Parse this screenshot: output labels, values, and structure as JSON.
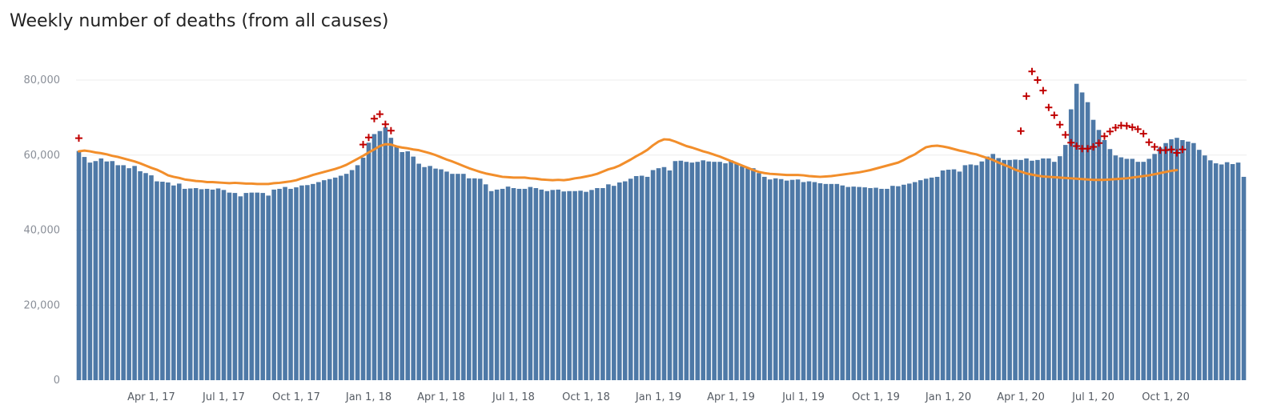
{
  "chart_data": {
    "type": "bar",
    "title": "Weekly number of deaths (from all causes)",
    "ylim": [
      0,
      80000
    ],
    "yticks": [
      0,
      20000,
      40000,
      60000,
      80000
    ],
    "ytick_labels": [
      "0",
      "20,000",
      "40,000",
      "60,000",
      "80,000"
    ],
    "xtick_labels": [
      "Apr 1, 17",
      "Jul 1, 17",
      "Oct 1, 17",
      "Jan 1, 18",
      "Apr 1, 18",
      "Jul 1, 18",
      "Oct 1, 18",
      "Jan 1, 19",
      "Apr 1, 19",
      "Jul 1, 19",
      "Oct 1, 19",
      "Jan 1, 20",
      "Apr 1, 20",
      "Jul 1, 20",
      "Oct 1, 20"
    ],
    "xtick_weeks": [
      13,
      26,
      39,
      52,
      65,
      78,
      91,
      104,
      117,
      130,
      143,
      156,
      169,
      182,
      195
    ],
    "colors": {
      "bars": "#4e79a7",
      "line": "#f28e2b",
      "markers": "#c00000"
    },
    "series": [
      {
        "values": [
          61100,
          59500,
          58000,
          58400,
          59100,
          58300,
          58400,
          57300,
          57300,
          56500,
          57100,
          55700,
          55200,
          54600,
          53000,
          52900,
          52700,
          51900,
          52400,
          51000,
          51100,
          51200,
          50900,
          51000,
          50800,
          51100,
          50700,
          50000,
          49900,
          49000,
          49900,
          50000,
          50000,
          49900,
          49200,
          50800,
          51000,
          51500,
          51000,
          51400,
          51900,
          52000,
          52300,
          52800,
          53300,
          53600,
          54000,
          54500,
          55000,
          56000,
          57300,
          59300,
          63300,
          65600,
          66400,
          67400,
          64600,
          62200,
          60800,
          61000,
          59600,
          57700,
          56800,
          57100,
          56400,
          56200,
          55600,
          55000,
          55000,
          55000,
          53800,
          53800,
          53700,
          52200,
          50400,
          50800,
          51000,
          51600,
          51200,
          51000,
          51000,
          51500,
          51200,
          50800,
          50400,
          50700,
          50800,
          50300,
          50400,
          50400,
          50500,
          50200,
          50700,
          51200,
          51200,
          52200,
          51800,
          52700,
          53000,
          53700,
          54400,
          54500,
          54200,
          56000,
          56500,
          56800,
          55900,
          58400,
          58500,
          58200,
          58000,
          58200,
          58600,
          58300,
          58200,
          58200,
          57800,
          58600,
          57700,
          57000,
          56700,
          56500,
          55200,
          54200,
          53500,
          53800,
          53600,
          53200,
          53400,
          53500,
          52800,
          53000,
          52800,
          52500,
          52300,
          52300,
          52300,
          51900,
          51500,
          51600,
          51500,
          51400,
          51200,
          51300,
          51000,
          51000,
          51800,
          51700,
          52100,
          52400,
          52800,
          53300,
          53700,
          54000,
          54200,
          55900,
          56100,
          56200,
          55600,
          57300,
          57500,
          57300,
          58300,
          59600,
          60300,
          59200,
          58700,
          58700,
          58800,
          58700,
          59100,
          58500,
          58700,
          59100,
          59100,
          58200,
          59700,
          62700,
          72200,
          79000,
          76700,
          74100,
          69400,
          66700,
          64000,
          61600,
          59900,
          59400,
          59000,
          59000,
          58200,
          58200,
          59000,
          60300,
          62000,
          63200,
          64200,
          64600,
          64000,
          63600,
          63200,
          61400,
          59900,
          58600,
          57800,
          57500,
          58100,
          57600,
          58000,
          54200
        ]
      },
      {
        "values": [
          61000,
          61200,
          61000,
          60700,
          60500,
          60200,
          59800,
          59500,
          59100,
          58700,
          58300,
          57800,
          57200,
          56600,
          56100,
          55400,
          54600,
          54200,
          53900,
          53500,
          53300,
          53100,
          53000,
          52800,
          52800,
          52700,
          52600,
          52500,
          52600,
          52500,
          52400,
          52400,
          52300,
          52300,
          52300,
          52500,
          52600,
          52800,
          53000,
          53300,
          53800,
          54200,
          54700,
          55100,
          55500,
          55900,
          56300,
          56800,
          57400,
          58200,
          59000,
          59800,
          60700,
          61500,
          62400,
          62900,
          62800,
          62300,
          62000,
          61800,
          61500,
          61300,
          60900,
          60500,
          60000,
          59400,
          58800,
          58300,
          57700,
          57100,
          56500,
          56000,
          55500,
          55100,
          54800,
          54500,
          54200,
          54100,
          54000,
          54000,
          54000,
          53800,
          53700,
          53500,
          53400,
          53300,
          53400,
          53300,
          53500,
          53800,
          54000,
          54300,
          54600,
          55000,
          55600,
          56200,
          56600,
          57200,
          58000,
          58800,
          59700,
          60500,
          61400,
          62600,
          63600,
          64200,
          64100,
          63600,
          63000,
          62400,
          62000,
          61500,
          61000,
          60600,
          60100,
          59600,
          59000,
          58400,
          57800,
          57200,
          56600,
          56000,
          55500,
          55200,
          55000,
          54900,
          54800,
          54700,
          54700,
          54700,
          54600,
          54400,
          54300,
          54200,
          54300,
          54400,
          54600,
          54800,
          55000,
          55200,
          55400,
          55700,
          56000,
          56400,
          56800,
          57200,
          57600,
          58000,
          58700,
          59500,
          60200,
          61200,
          62100,
          62400,
          62500,
          62300,
          62000,
          61600,
          61200,
          60900,
          60500,
          60200,
          59700,
          59200,
          58700,
          58000,
          57400,
          56800,
          56100,
          55600,
          55100,
          54800,
          54500,
          54300,
          54200,
          54100,
          54000,
          53900,
          53800,
          53700,
          53600,
          53500,
          53400,
          53400,
          53400,
          53500,
          53600,
          53700,
          53800,
          54000,
          54200,
          54400,
          54600,
          54900,
          55200,
          55500,
          55800,
          56000
        ]
      }
    ],
    "highlighted_points": [
      {
        "week": 0,
        "value": 64500
      },
      {
        "week": 51,
        "value": 62800
      },
      {
        "week": 52,
        "value": 64700
      },
      {
        "week": 53,
        "value": 69700
      },
      {
        "week": 54,
        "value": 70900
      },
      {
        "week": 55,
        "value": 68200
      },
      {
        "week": 56,
        "value": 66500
      },
      {
        "week": 169,
        "value": 66400
      },
      {
        "week": 170,
        "value": 75700
      },
      {
        "week": 171,
        "value": 82300
      },
      {
        "week": 172,
        "value": 80000
      },
      {
        "week": 173,
        "value": 77200
      },
      {
        "week": 174,
        "value": 72700
      },
      {
        "week": 175,
        "value": 70600
      },
      {
        "week": 176,
        "value": 68100
      },
      {
        "week": 177,
        "value": 65400
      },
      {
        "week": 178,
        "value": 63300
      },
      {
        "week": 179,
        "value": 62400
      },
      {
        "week": 180,
        "value": 61700
      },
      {
        "week": 181,
        "value": 61700
      },
      {
        "week": 182,
        "value": 62200
      },
      {
        "week": 183,
        "value": 63200
      },
      {
        "week": 184,
        "value": 65000
      },
      {
        "week": 185,
        "value": 66300
      },
      {
        "week": 186,
        "value": 67300
      },
      {
        "week": 187,
        "value": 67900
      },
      {
        "week": 188,
        "value": 67800
      },
      {
        "week": 189,
        "value": 67400
      },
      {
        "week": 190,
        "value": 66900
      },
      {
        "week": 191,
        "value": 65700
      },
      {
        "week": 192,
        "value": 63400
      },
      {
        "week": 193,
        "value": 62200
      },
      {
        "week": 194,
        "value": 61300
      },
      {
        "week": 195,
        "value": 61300
      },
      {
        "week": 196,
        "value": 61500
      },
      {
        "week": 197,
        "value": 60600
      },
      {
        "week": 198,
        "value": 61500
      }
    ]
  }
}
